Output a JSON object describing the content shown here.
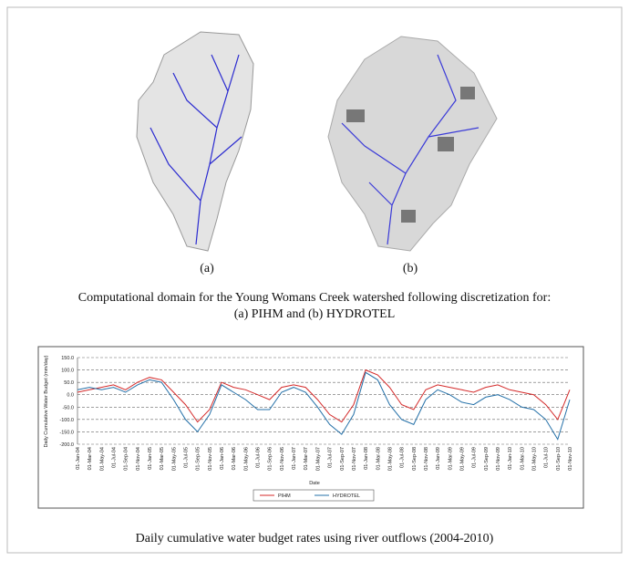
{
  "panel_labels": [
    "(a)",
    "(b)"
  ],
  "caption_1": [
    "Computational domain for the Young Womans Creek watershed following discretization for:",
    "(a) PIHM and (b) HYDROTEL"
  ],
  "chart_data": {
    "type": "line",
    "y_label": "Daily Cumulative Water Budget (mm/day)",
    "x_label": "Date",
    "categories": [
      "01-Jan-04",
      "01-Mar-04",
      "01-May-04",
      "01-Jul-04",
      "01-Sep-04",
      "01-Nov-04",
      "01-Jan-05",
      "01-Mar-05",
      "01-May-05",
      "01-Jul-05",
      "01-Sep-05",
      "01-Nov-05",
      "01-Jan-06",
      "01-Mar-06",
      "01-May-06",
      "01-Jul-06",
      "01-Sep-06",
      "01-Nov-06",
      "01-Jan-07",
      "01-Mar-07",
      "01-May-07",
      "01-Jul-07",
      "01-Sep-07",
      "01-Nov-07",
      "01-Jan-08",
      "01-Mar-08",
      "01-May-08",
      "01-Jul-08",
      "01-Sep-08",
      "01-Nov-08",
      "01-Jan-09",
      "01-Mar-09",
      "01-May-09",
      "01-Jul-09",
      "01-Sep-09",
      "01-Nov-09",
      "01-Jan-10",
      "01-Mar-10",
      "01-May-10",
      "01-Jul-10",
      "01-Sep-10",
      "01-Nov-10"
    ],
    "series": [
      {
        "name": "PIHM",
        "color": "#d42a2a",
        "values": [
          10,
          20,
          30,
          40,
          20,
          50,
          70,
          60,
          10,
          -40,
          -110,
          -60,
          50,
          30,
          20,
          0,
          -20,
          30,
          40,
          30,
          -20,
          -80,
          -110,
          -40,
          100,
          80,
          30,
          -40,
          -60,
          20,
          40,
          30,
          20,
          10,
          30,
          40,
          20,
          10,
          0,
          -40,
          -100,
          20
        ]
      },
      {
        "name": "HYDROTEL",
        "color": "#2470a8",
        "values": [
          20,
          30,
          20,
          30,
          10,
          40,
          60,
          50,
          -20,
          -100,
          -150,
          -80,
          40,
          10,
          -20,
          -60,
          -60,
          10,
          30,
          10,
          -50,
          -120,
          -160,
          -80,
          90,
          60,
          -40,
          -100,
          -120,
          -20,
          20,
          0,
          -30,
          -40,
          -10,
          0,
          -20,
          -50,
          -60,
          -100,
          -180,
          -20
        ]
      }
    ],
    "ylim": [
      -200,
      150
    ],
    "yticks": [
      {
        "value": 150,
        "label": "150.0"
      },
      {
        "value": 100,
        "label": "100.0"
      },
      {
        "value": 50,
        "label": "50.0"
      },
      {
        "value": 0,
        "label": "0.0"
      },
      {
        "value": -50,
        "label": "-50.0"
      },
      {
        "value": -100,
        "label": "-100.0"
      },
      {
        "value": -150,
        "label": "-150.0"
      },
      {
        "value": -200,
        "label": "-200.0"
      }
    ],
    "grid": true
  },
  "caption_2": "Daily cumulative water budget rates using river outflows (2004-2010)"
}
